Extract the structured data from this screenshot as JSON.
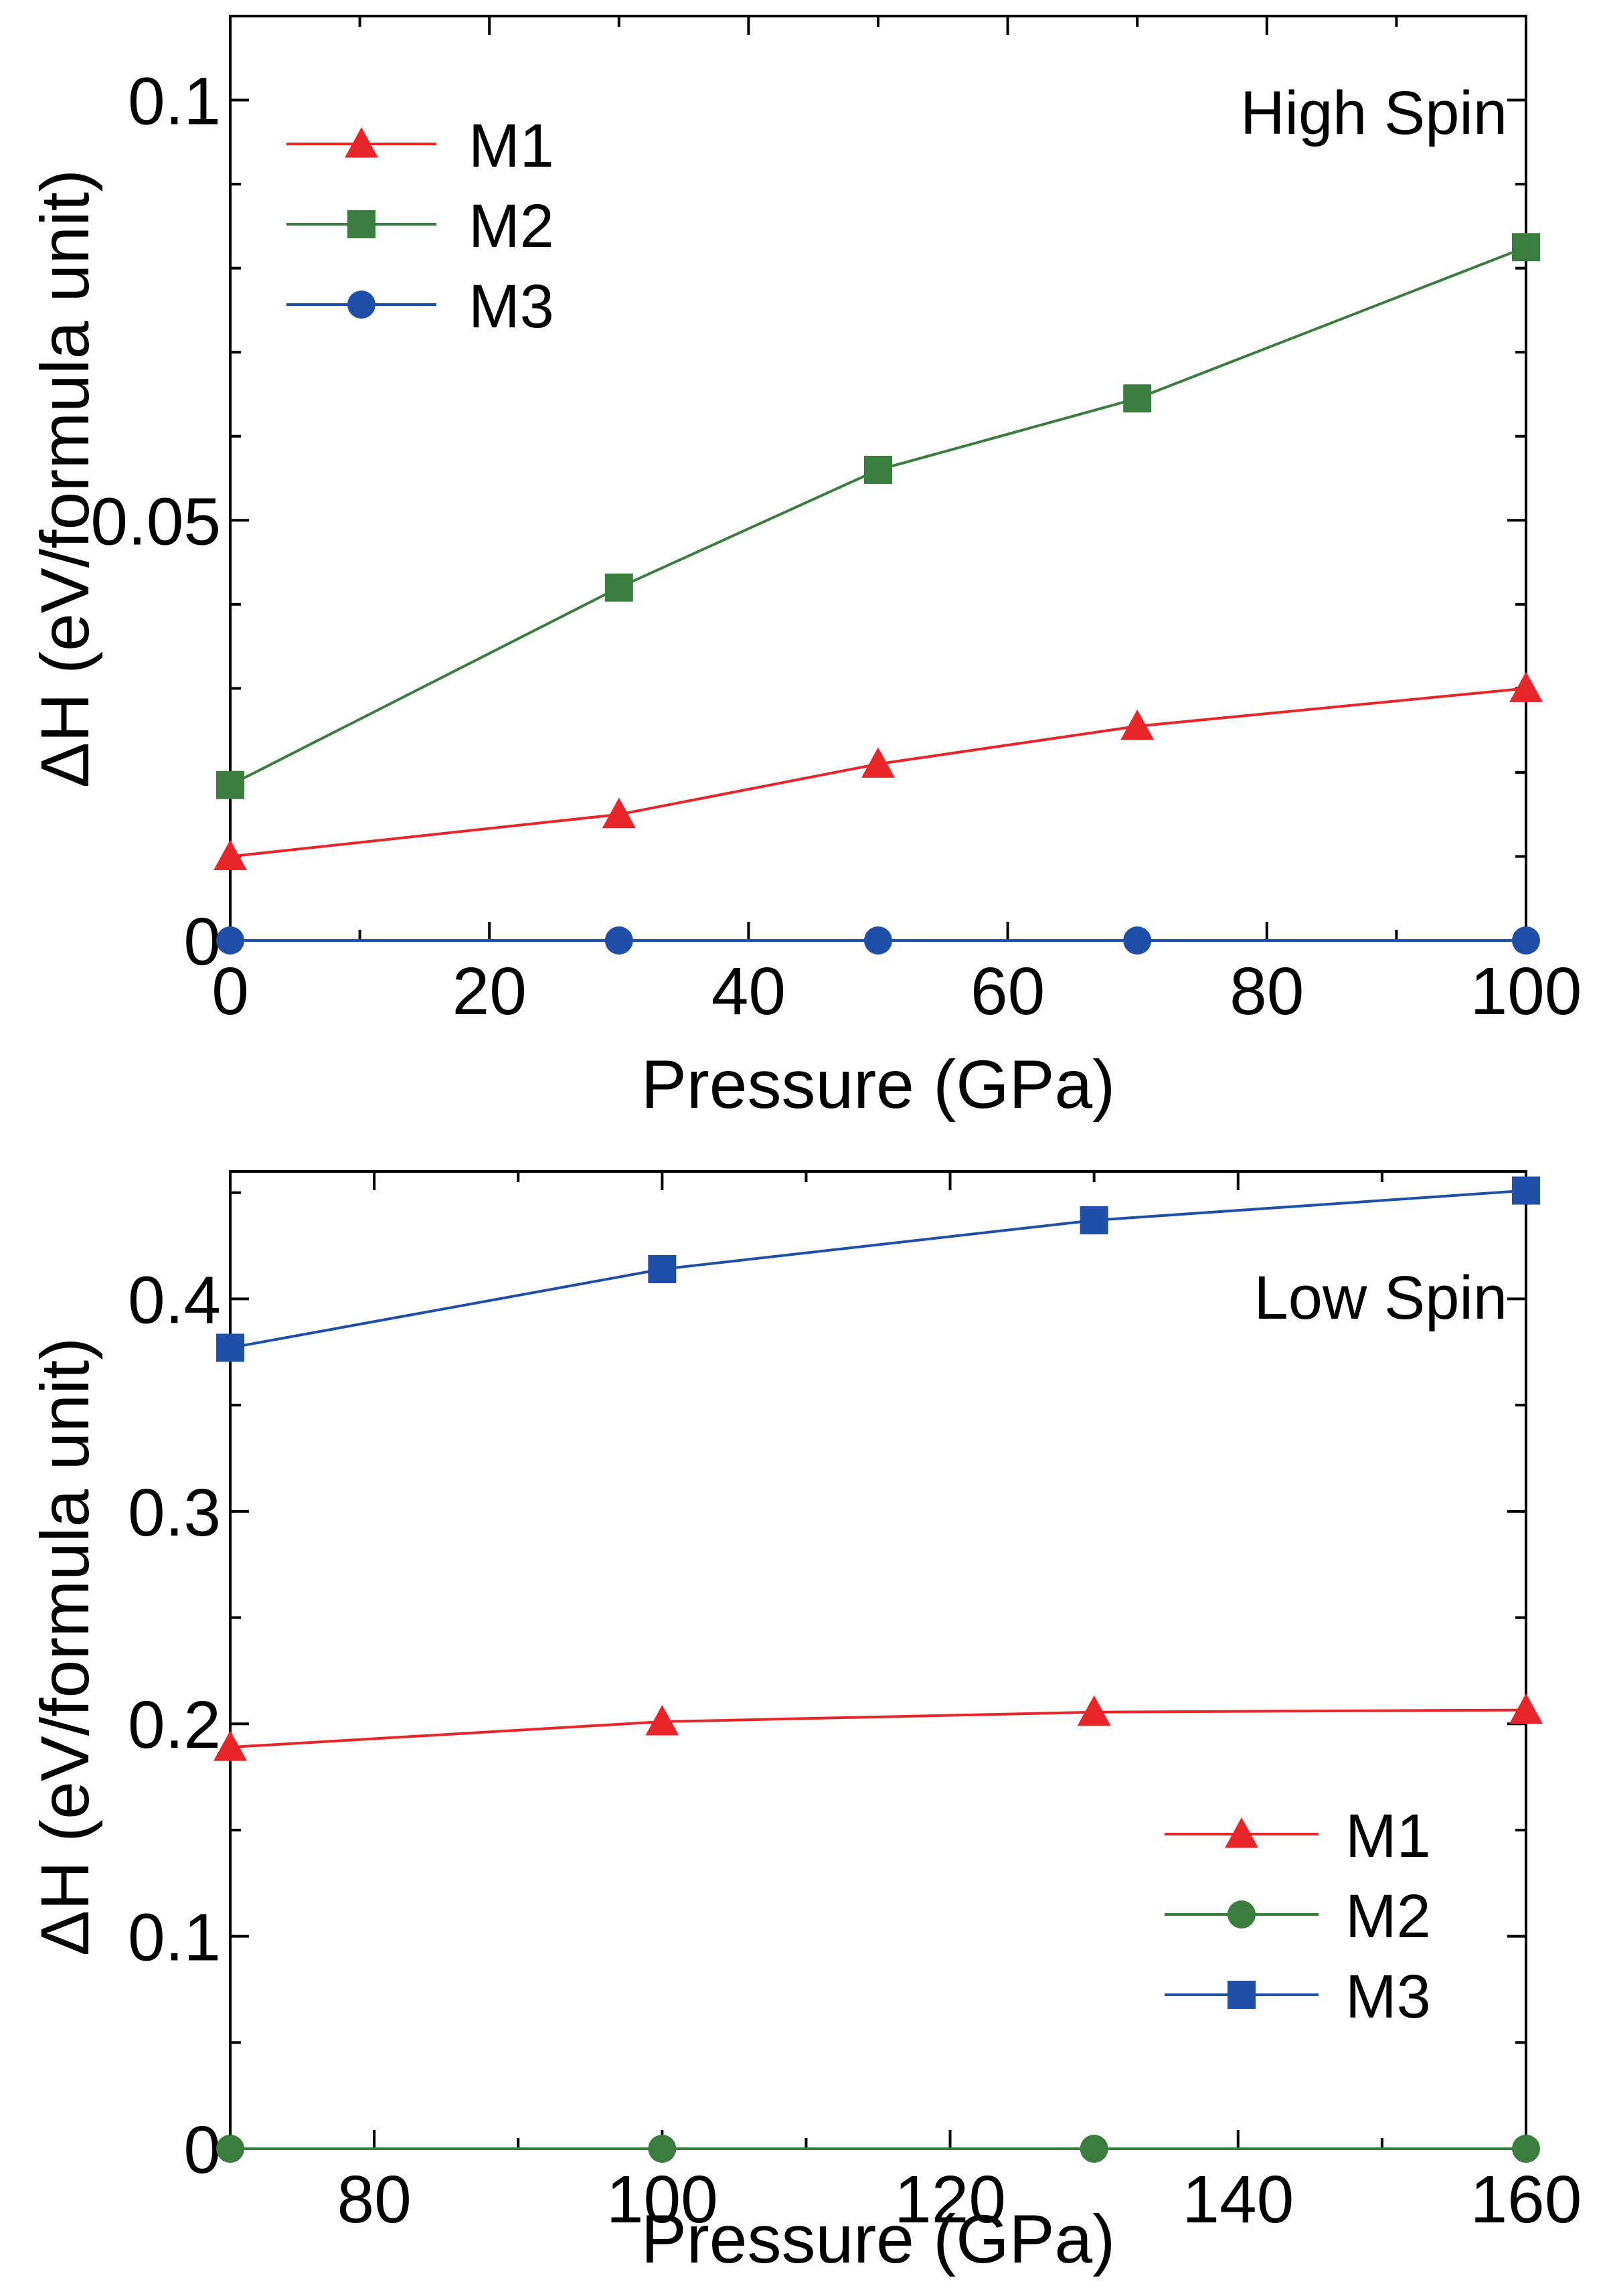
{
  "chart_data": [
    {
      "type": "line",
      "panel": "top",
      "annotation": "High Spin",
      "xlabel": "Pressure (GPa)",
      "ylabel": "ΔH (eV/formula unit)",
      "xlim": [
        0,
        100
      ],
      "ylim": [
        0,
        0.11
      ],
      "xticks": [
        0,
        20,
        40,
        60,
        80,
        100
      ],
      "xtick_labels": [
        "0",
        "20",
        "40",
        "60",
        "80",
        "100"
      ],
      "yticks": [
        0,
        0.05,
        0.1
      ],
      "ytick_labels": [
        "0",
        "0.05",
        "0.1"
      ],
      "x_minor_step": 10,
      "y_minor_step": 0.01,
      "legend_position": "top-left",
      "series": [
        {
          "name": "M1",
          "color": "#e8262a",
          "marker": "triangle",
          "x": [
            0,
            30,
            50,
            70,
            100
          ],
          "y": [
            0.01,
            0.015,
            0.021,
            0.0255,
            0.03
          ]
        },
        {
          "name": "M2",
          "color": "#3a7d3f",
          "marker": "square",
          "x": [
            0,
            30,
            50,
            70,
            100
          ],
          "y": [
            0.0185,
            0.042,
            0.056,
            0.0645,
            0.0825
          ]
        },
        {
          "name": "M3",
          "color": "#1f4fa8",
          "marker": "circle",
          "x": [
            0,
            30,
            50,
            70,
            100
          ],
          "y": [
            0,
            0,
            0,
            0,
            0
          ]
        }
      ]
    },
    {
      "type": "line",
      "panel": "bottom",
      "annotation": "Low Spin",
      "xlabel": "Pressure (GPa)",
      "ylabel": "ΔH (eV/formula unit)",
      "xlim": [
        70,
        160
      ],
      "ylim": [
        0,
        0.46
      ],
      "xticks": [
        80,
        100,
        120,
        140,
        160
      ],
      "xtick_labels": [
        "80",
        "100",
        "120",
        "140",
        "160"
      ],
      "yticks": [
        0,
        0.1,
        0.2,
        0.3,
        0.4
      ],
      "ytick_labels": [
        "0",
        "0.1",
        "0.2",
        "0.3",
        "0.4"
      ],
      "x_minor_step": 10,
      "y_minor_step": 0.05,
      "legend_position": "bottom-right",
      "series": [
        {
          "name": "M1",
          "color": "#e8262a",
          "marker": "triangle",
          "x": [
            70,
            100,
            130,
            160
          ],
          "y": [
            0.189,
            0.201,
            0.2055,
            0.2065
          ]
        },
        {
          "name": "M2",
          "color": "#3a7d3f",
          "marker": "circle",
          "x": [
            70,
            100,
            130,
            160
          ],
          "y": [
            0,
            0,
            0,
            0
          ]
        },
        {
          "name": "M3",
          "color": "#1f4fa8",
          "marker": "square",
          "x": [
            70,
            100,
            130,
            160
          ],
          "y": [
            0.377,
            0.414,
            0.437,
            0.451
          ]
        }
      ]
    }
  ]
}
